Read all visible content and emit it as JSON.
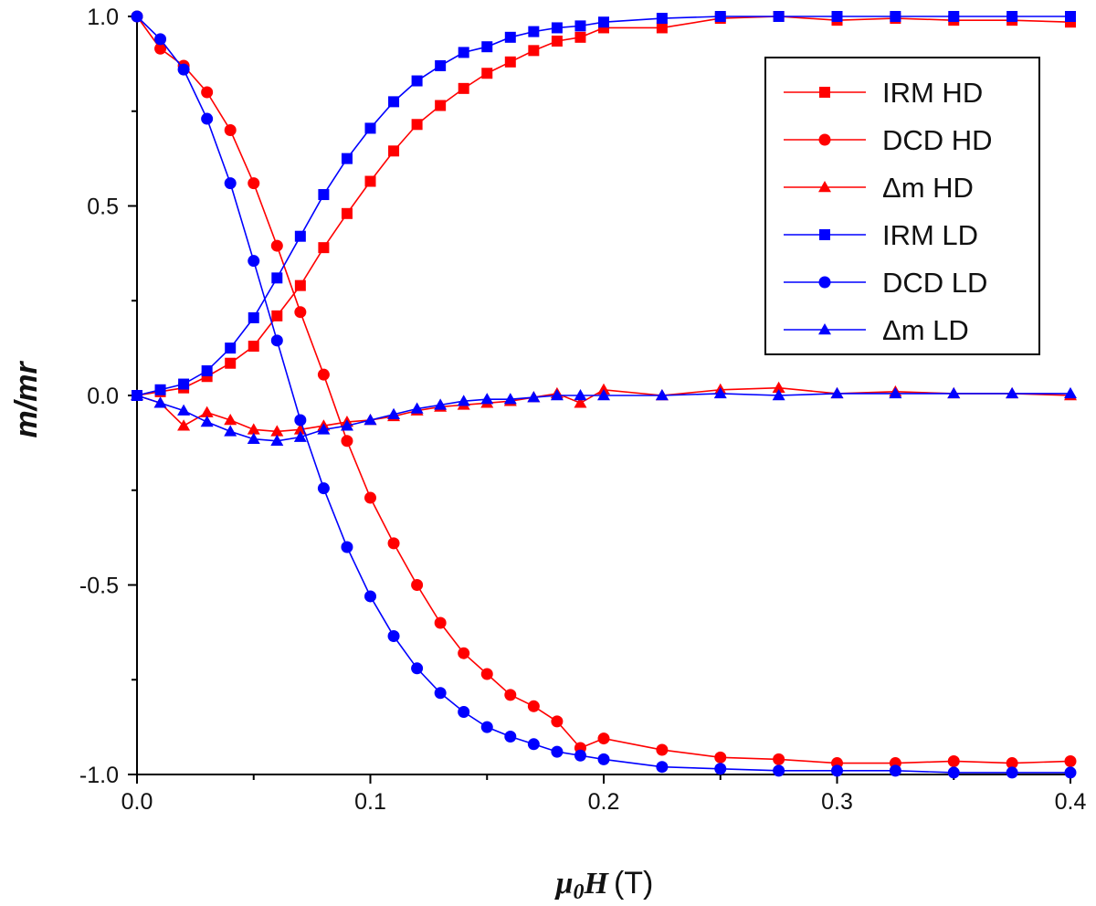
{
  "chart_data": {
    "type": "line",
    "title": "",
    "xlabel_var": "μ",
    "xlabel_sub": "0",
    "xlabel_var2": "H",
    "xlabel_unit": "(T)",
    "ylabel": "m/mr",
    "xlim": [
      0,
      0.4
    ],
    "ylim": [
      -1.0,
      1.0
    ],
    "x_ticks": [
      0.0,
      0.1,
      0.2,
      0.3,
      0.4
    ],
    "x_tick_labels": [
      "0.0",
      "0.1",
      "0.2",
      "0.3",
      "0.4"
    ],
    "y_ticks": [
      -1.0,
      -0.5,
      0.0,
      0.5,
      1.0
    ],
    "y_tick_labels": [
      "-1.0",
      "-0.5",
      "0.0",
      "0.5",
      "1.0"
    ],
    "grid": false,
    "legend_position": "top-right",
    "series": [
      {
        "name": "IRM HD",
        "color": "#ff0000",
        "marker": "square",
        "x": [
          0,
          0.01,
          0.02,
          0.03,
          0.04,
          0.05,
          0.06,
          0.07,
          0.08,
          0.09,
          0.1,
          0.11,
          0.12,
          0.13,
          0.14,
          0.15,
          0.16,
          0.17,
          0.18,
          0.19,
          0.2,
          0.225,
          0.25,
          0.275,
          0.3,
          0.325,
          0.35,
          0.375,
          0.4
        ],
        "y": [
          0,
          0.01,
          0.02,
          0.05,
          0.085,
          0.13,
          0.21,
          0.29,
          0.39,
          0.48,
          0.565,
          0.645,
          0.715,
          0.765,
          0.81,
          0.85,
          0.88,
          0.91,
          0.935,
          0.945,
          0.97,
          0.97,
          0.995,
          1.0,
          0.99,
          0.995,
          0.99,
          0.99,
          0.985
        ]
      },
      {
        "name": "DCD HD",
        "color": "#ff0000",
        "marker": "circle",
        "x": [
          0,
          0.01,
          0.02,
          0.03,
          0.04,
          0.05,
          0.06,
          0.07,
          0.08,
          0.09,
          0.1,
          0.11,
          0.12,
          0.13,
          0.14,
          0.15,
          0.16,
          0.17,
          0.18,
          0.19,
          0.2,
          0.225,
          0.25,
          0.275,
          0.3,
          0.325,
          0.35,
          0.375,
          0.4
        ],
        "y": [
          1.0,
          0.915,
          0.87,
          0.8,
          0.7,
          0.56,
          0.395,
          0.22,
          0.055,
          -0.12,
          -0.27,
          -0.39,
          -0.5,
          -0.6,
          -0.68,
          -0.735,
          -0.79,
          -0.82,
          -0.86,
          -0.93,
          -0.905,
          -0.935,
          -0.955,
          -0.96,
          -0.97,
          -0.97,
          -0.965,
          -0.97,
          -0.965
        ]
      },
      {
        "name": "Δm HD",
        "color": "#ff0000",
        "marker": "triangle",
        "x": [
          0,
          0.01,
          0.02,
          0.03,
          0.04,
          0.05,
          0.06,
          0.07,
          0.08,
          0.09,
          0.1,
          0.11,
          0.12,
          0.13,
          0.14,
          0.15,
          0.16,
          0.17,
          0.18,
          0.19,
          0.2,
          0.225,
          0.25,
          0.275,
          0.3,
          0.325,
          0.35,
          0.375,
          0.4
        ],
        "y": [
          0,
          -0.02,
          -0.08,
          -0.045,
          -0.065,
          -0.09,
          -0.095,
          -0.09,
          -0.08,
          -0.07,
          -0.065,
          -0.055,
          -0.04,
          -0.03,
          -0.025,
          -0.02,
          -0.015,
          -0.005,
          0.005,
          -0.02,
          0.015,
          0.0,
          0.015,
          0.02,
          0.005,
          0.01,
          0.005,
          0.005,
          0.0
        ]
      },
      {
        "name": "IRM LD",
        "color": "#0000ff",
        "marker": "square",
        "x": [
          0,
          0.01,
          0.02,
          0.03,
          0.04,
          0.05,
          0.06,
          0.07,
          0.08,
          0.09,
          0.1,
          0.11,
          0.12,
          0.13,
          0.14,
          0.15,
          0.16,
          0.17,
          0.18,
          0.19,
          0.2,
          0.225,
          0.25,
          0.275,
          0.3,
          0.325,
          0.35,
          0.375,
          0.4
        ],
        "y": [
          0,
          0.015,
          0.03,
          0.065,
          0.125,
          0.205,
          0.31,
          0.42,
          0.53,
          0.625,
          0.705,
          0.775,
          0.83,
          0.87,
          0.905,
          0.92,
          0.945,
          0.96,
          0.97,
          0.975,
          0.985,
          0.995,
          1.0,
          1.0,
          1.0,
          1.0,
          1.0,
          1.0,
          1.0
        ]
      },
      {
        "name": "DCD LD",
        "color": "#0000ff",
        "marker": "circle",
        "x": [
          0,
          0.01,
          0.02,
          0.03,
          0.04,
          0.05,
          0.06,
          0.07,
          0.08,
          0.09,
          0.1,
          0.11,
          0.12,
          0.13,
          0.14,
          0.15,
          0.16,
          0.17,
          0.18,
          0.19,
          0.2,
          0.225,
          0.25,
          0.275,
          0.3,
          0.325,
          0.35,
          0.375,
          0.4
        ],
        "y": [
          1.0,
          0.94,
          0.86,
          0.73,
          0.56,
          0.355,
          0.145,
          -0.065,
          -0.245,
          -0.4,
          -0.53,
          -0.635,
          -0.72,
          -0.785,
          -0.835,
          -0.875,
          -0.9,
          -0.92,
          -0.94,
          -0.95,
          -0.96,
          -0.98,
          -0.985,
          -0.99,
          -0.99,
          -0.99,
          -0.995,
          -0.995,
          -0.995
        ]
      },
      {
        "name": "Δm LD",
        "color": "#0000ff",
        "marker": "triangle",
        "x": [
          0,
          0.01,
          0.02,
          0.03,
          0.04,
          0.05,
          0.06,
          0.07,
          0.08,
          0.09,
          0.1,
          0.11,
          0.12,
          0.13,
          0.14,
          0.15,
          0.16,
          0.17,
          0.18,
          0.19,
          0.2,
          0.225,
          0.25,
          0.275,
          0.3,
          0.325,
          0.35,
          0.375,
          0.4
        ],
        "y": [
          0,
          -0.02,
          -0.04,
          -0.07,
          -0.095,
          -0.115,
          -0.12,
          -0.11,
          -0.09,
          -0.08,
          -0.065,
          -0.05,
          -0.035,
          -0.025,
          -0.015,
          -0.01,
          -0.01,
          -0.005,
          0.0,
          0.0,
          0.0,
          0.0,
          0.005,
          0.0,
          0.005,
          0.005,
          0.005,
          0.005,
          0.005
        ]
      }
    ]
  }
}
